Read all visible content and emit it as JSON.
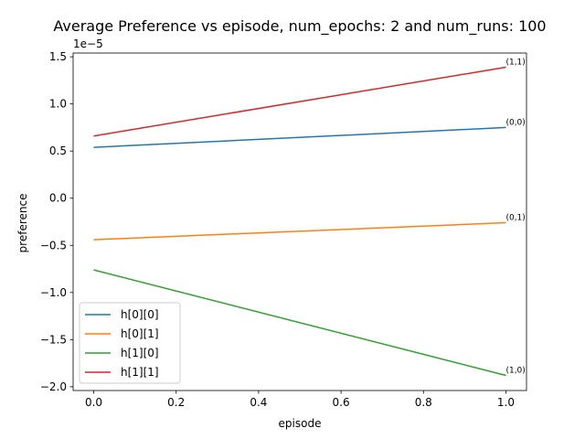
{
  "chart_data": {
    "type": "line",
    "title": "Average Preference vs episode, num_epochs: 2 and num_runs: 100",
    "xlabel": "episode",
    "ylabel": "preference",
    "y_multiplier_label": "1e−5",
    "xlim": [
      -0.05,
      1.05
    ],
    "ylim": [
      -2.04,
      1.54
    ],
    "x_ticks": [
      0.0,
      0.2,
      0.4,
      0.6,
      0.8,
      1.0
    ],
    "x_tick_labels": [
      "0.0",
      "0.2",
      "0.4",
      "0.6",
      "0.8",
      "1.0"
    ],
    "y_ticks": [
      -2.0,
      -1.5,
      -1.0,
      -0.5,
      0.0,
      0.5,
      1.0,
      1.5
    ],
    "y_tick_labels": [
      "−2.0",
      "−1.5",
      "−1.0",
      "−0.5",
      "0.0",
      "0.5",
      "1.0",
      "1.5"
    ],
    "x": [
      0.0,
      1.0
    ],
    "series": [
      {
        "name": "h[0][0]",
        "color": "#1f77b4",
        "values": [
          0.54,
          0.75
        ]
      },
      {
        "name": "h[0][1]",
        "color": "#ff7f0e",
        "values": [
          -0.44,
          -0.26
        ]
      },
      {
        "name": "h[1][0]",
        "color": "#2ca02c",
        "values": [
          -0.76,
          -1.88
        ]
      },
      {
        "name": "h[1][1]",
        "color": "#d62728",
        "values": [
          0.66,
          1.39
        ]
      }
    ],
    "annotations": [
      {
        "text": "(0,0)",
        "x": 1.0,
        "y": 0.75
      },
      {
        "text": "(0,1)",
        "x": 1.0,
        "y": -0.26
      },
      {
        "text": "(1,0)",
        "x": 1.0,
        "y": -1.88
      },
      {
        "text": "(1,1)",
        "x": 1.0,
        "y": 1.39
      }
    ],
    "grid": false,
    "legend_position": "lower-left"
  }
}
